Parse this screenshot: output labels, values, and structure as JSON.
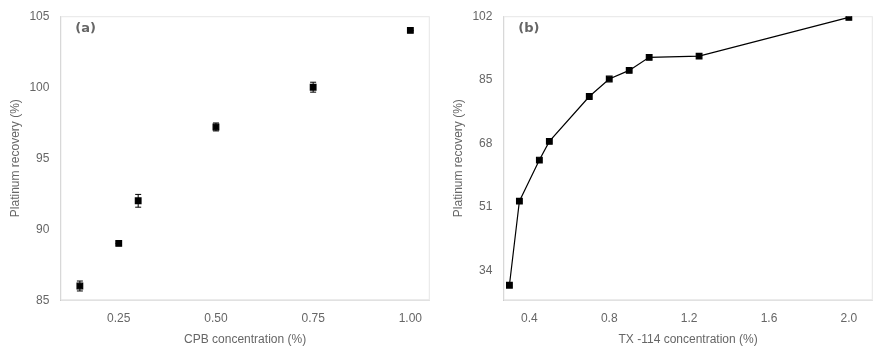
{
  "chart_data": [
    {
      "type": "scatter",
      "x": [
        0.15,
        0.25,
        0.3,
        0.5,
        0.75,
        1.0
      ],
      "values": [
        86.0,
        89.0,
        92.0,
        97.2,
        100.0,
        104.0
      ],
      "errors": [
        0.35,
        0.0,
        0.45,
        0.28,
        0.35,
        0.0
      ],
      "xlabel": "CPB concentration (%)",
      "ylabel": "Platinum recovery (%)",
      "annotation": "(a)",
      "xlim": [
        0.1,
        1.05
      ],
      "xticks": [
        0.25,
        {
          "value": 0.5,
          "label": "0.50"
        },
        0.75,
        {
          "value": 1.0,
          "label": "1.00"
        }
      ],
      "ylim": [
        85,
        105
      ],
      "yticks": [
        85,
        90,
        95,
        100,
        105
      ],
      "color": "black",
      "marker": "square",
      "grid": false
    },
    {
      "type": "line",
      "x": [
        0.3,
        0.35,
        0.45,
        0.5,
        0.7,
        0.8,
        0.9,
        1.0,
        1.25,
        2.0
      ],
      "values": [
        30.0,
        52.5,
        63.5,
        68.5,
        80.5,
        85.2,
        87.5,
        91.0,
        91.3,
        101.7
      ],
      "xlabel": "TX -114 concentration (%)",
      "ylabel": "Platinum recovery (%)",
      "annotation": "(b)",
      "xlim": [
        0.27,
        2.12
      ],
      "xticks": [
        0.4,
        0.8,
        1.2,
        1.6,
        {
          "value": 2.0,
          "label": "2.0"
        }
      ],
      "ylim": [
        26,
        102
      ],
      "yticks": [
        34,
        51,
        68,
        85,
        102
      ],
      "color": "black",
      "marker": "square",
      "grid": false
    }
  ]
}
